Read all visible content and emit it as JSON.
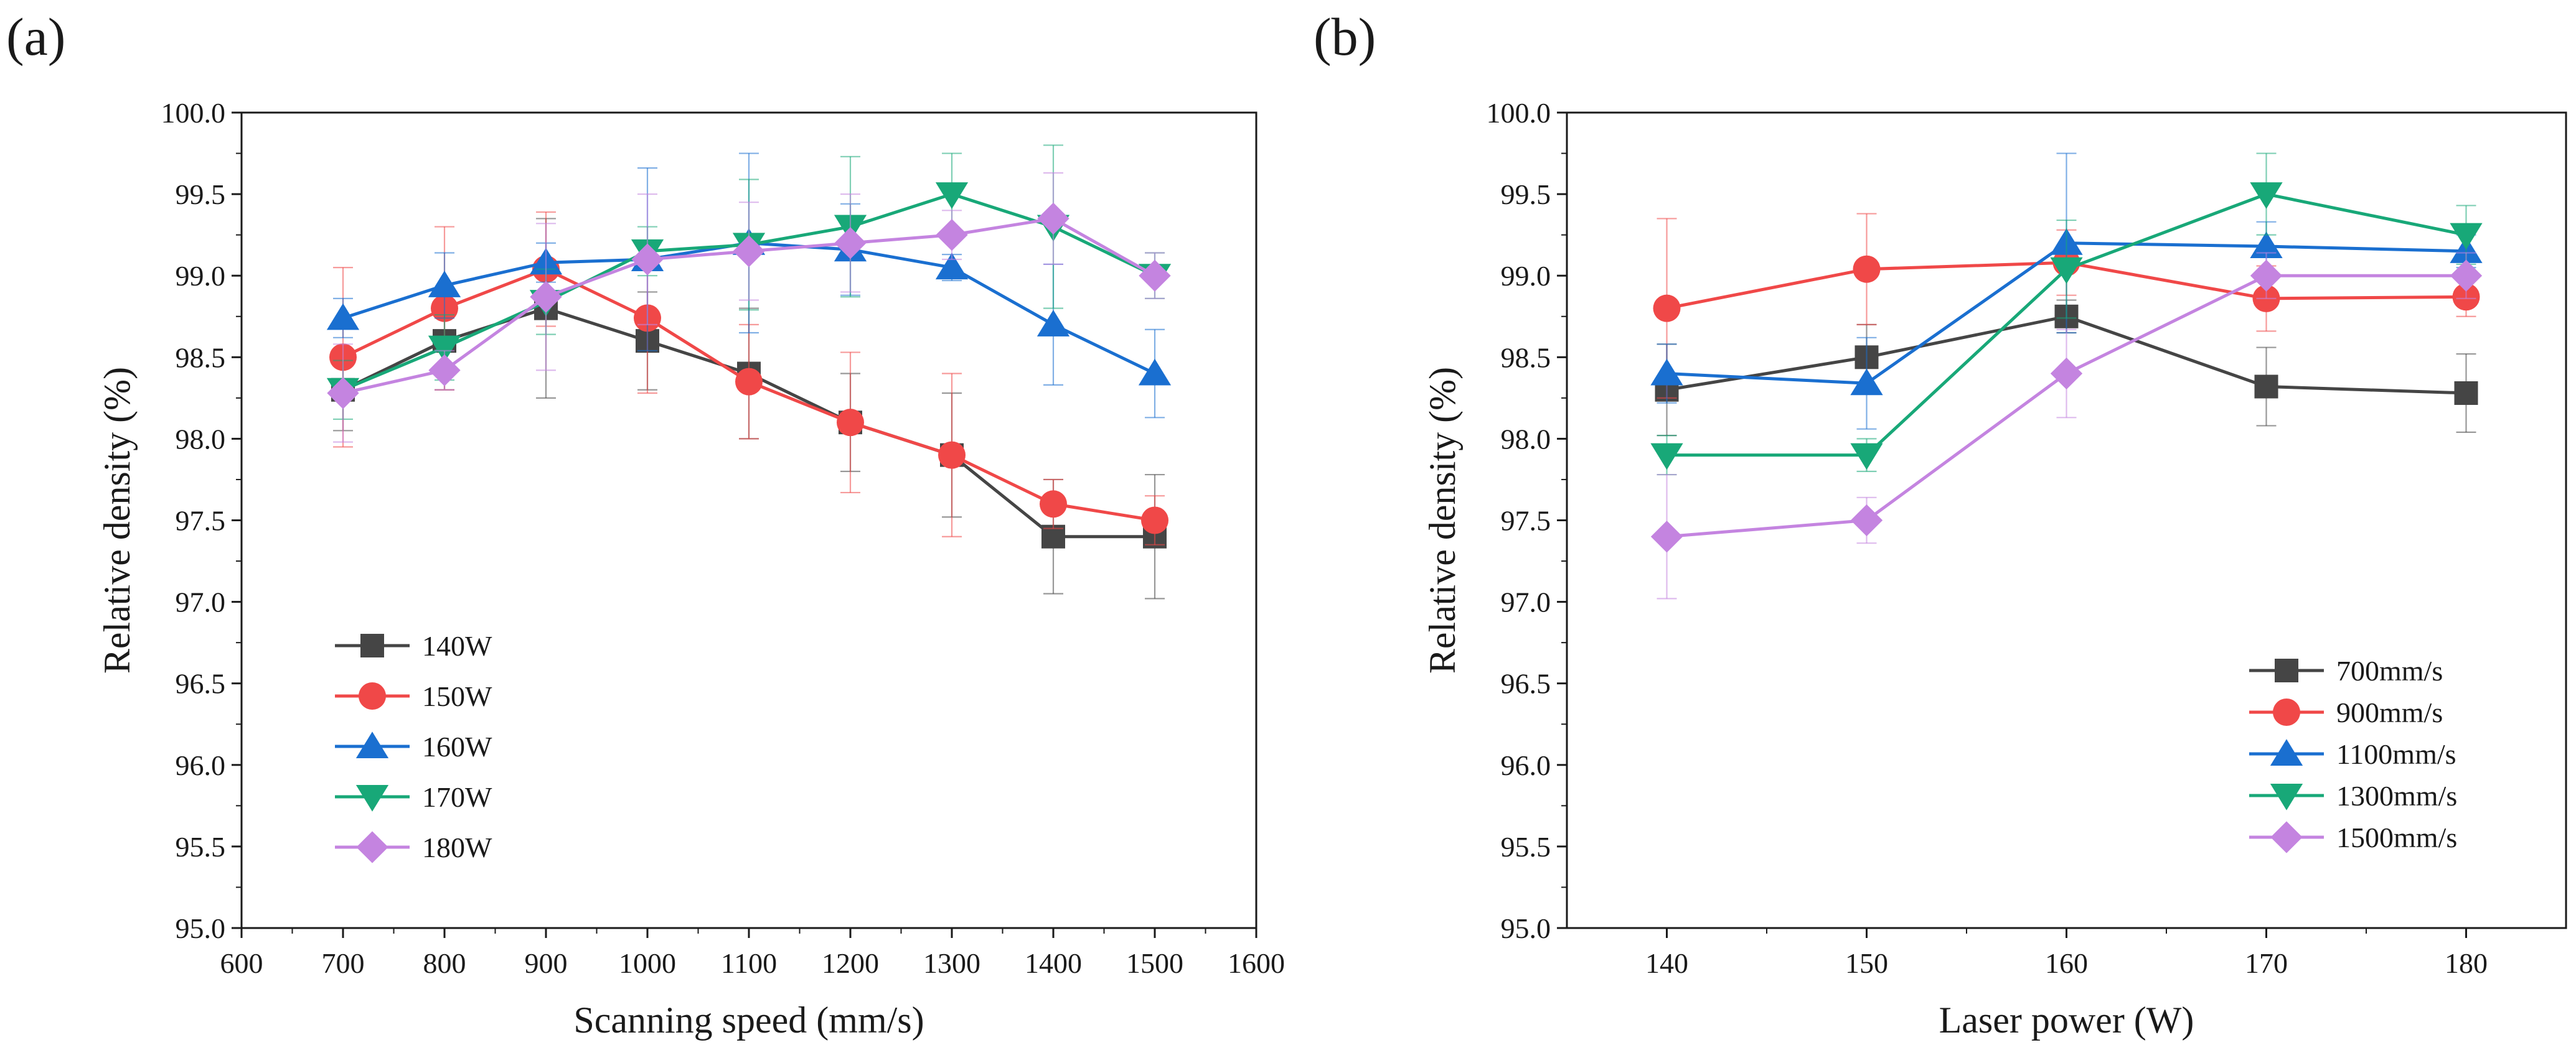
{
  "chart_data": [
    {
      "panel_label": "(a)",
      "type": "line",
      "xlabel": "Scanning speed (mm/s)",
      "ylabel": "Relative density (%)",
      "xlim": [
        600,
        1600
      ],
      "ylim": [
        95.0,
        100.0
      ],
      "x_ticks": [
        600,
        700,
        800,
        900,
        1000,
        1100,
        1200,
        1300,
        1400,
        1500,
        1600
      ],
      "y_ticks": [
        "95.0",
        "95.5",
        "96.0",
        "96.5",
        "97.0",
        "97.5",
        "98.0",
        "98.5",
        "99.0",
        "99.5",
        "100.0"
      ],
      "x": [
        700,
        800,
        900,
        1000,
        1100,
        1200,
        1300,
        1400,
        1500
      ],
      "legend_position": "bottom-left",
      "series": [
        {
          "name": "140W",
          "color": "#454545",
          "marker": "square",
          "values": [
            98.3,
            98.6,
            98.8,
            98.6,
            98.4,
            98.1,
            97.9,
            97.4,
            97.4
          ],
          "errors": [
            0.25,
            0.3,
            0.55,
            0.3,
            0.4,
            0.3,
            0.38,
            0.35,
            0.38
          ]
        },
        {
          "name": "150W",
          "color": "#f04848",
          "marker": "circle",
          "values": [
            98.5,
            98.8,
            99.04,
            98.74,
            98.35,
            98.1,
            97.9,
            97.6,
            97.5
          ],
          "errors": [
            0.55,
            0.5,
            0.35,
            0.46,
            0.35,
            0.43,
            0.5,
            0.15,
            0.15
          ]
        },
        {
          "name": "160W",
          "color": "#1a6fd0",
          "marker": "triangle-up",
          "values": [
            98.74,
            98.94,
            99.08,
            99.1,
            99.2,
            99.16,
            99.05,
            98.7,
            98.4
          ],
          "errors": [
            0.12,
            0.2,
            0.12,
            0.56,
            0.55,
            0.28,
            0.08,
            0.37,
            0.27
          ]
        },
        {
          "name": "170W",
          "color": "#18a878",
          "marker": "triangle-down",
          "values": [
            98.3,
            98.56,
            98.84,
            99.15,
            99.19,
            99.3,
            99.5,
            99.3,
            99.0
          ],
          "errors": [
            0.18,
            0.2,
            0.2,
            0.15,
            0.4,
            0.43,
            0.25,
            0.5,
            0.14
          ]
        },
        {
          "name": "180W",
          "color": "#c484e0",
          "marker": "diamond",
          "values": [
            98.28,
            98.42,
            98.87,
            99.1,
            99.15,
            99.2,
            99.25,
            99.35,
            99.0
          ],
          "errors": [
            0.3,
            0.12,
            0.45,
            0.4,
            0.3,
            0.3,
            0.15,
            0.28,
            0.14
          ]
        }
      ]
    },
    {
      "panel_label": "(b)",
      "type": "line",
      "xlabel": "Laser power (W)",
      "ylabel": "Relative density (%)",
      "xlim": [
        135,
        185
      ],
      "ylim": [
        95.0,
        100.0
      ],
      "x_ticks": [
        140,
        150,
        160,
        170,
        180
      ],
      "y_ticks": [
        "95.0",
        "95.5",
        "96.0",
        "96.5",
        "97.0",
        "97.5",
        "98.0",
        "98.5",
        "99.0",
        "99.5",
        "100.0"
      ],
      "x": [
        140,
        150,
        160,
        170,
        180
      ],
      "legend_position": "bottom-right",
      "series": [
        {
          "name": "700mm/s",
          "color": "#454545",
          "marker": "square",
          "values": [
            98.3,
            98.5,
            98.75,
            98.32,
            98.28
          ],
          "errors": [
            0.28,
            0.2,
            0.1,
            0.24,
            0.24
          ]
        },
        {
          "name": "900mm/s",
          "color": "#f04848",
          "marker": "circle",
          "values": [
            98.8,
            99.04,
            99.08,
            98.86,
            98.87
          ],
          "errors": [
            0.55,
            0.34,
            0.2,
            0.2,
            0.12
          ]
        },
        {
          "name": "1100mm/s",
          "color": "#1a6fd0",
          "marker": "triangle-up",
          "values": [
            98.4,
            98.34,
            99.2,
            99.18,
            99.15
          ],
          "errors": [
            0.18,
            0.28,
            0.55,
            0.15,
            0.1
          ]
        },
        {
          "name": "1300mm/s",
          "color": "#18a878",
          "marker": "triangle-down",
          "values": [
            97.9,
            97.9,
            99.04,
            99.5,
            99.25
          ],
          "errors": [
            0.12,
            0.1,
            0.3,
            0.25,
            0.18
          ]
        },
        {
          "name": "1500mm/s",
          "color": "#c484e0",
          "marker": "diamond",
          "values": [
            97.4,
            97.5,
            98.4,
            99.0,
            99.0
          ],
          "errors": [
            0.38,
            0.14,
            0.27,
            0.14,
            0.14
          ]
        }
      ]
    }
  ]
}
